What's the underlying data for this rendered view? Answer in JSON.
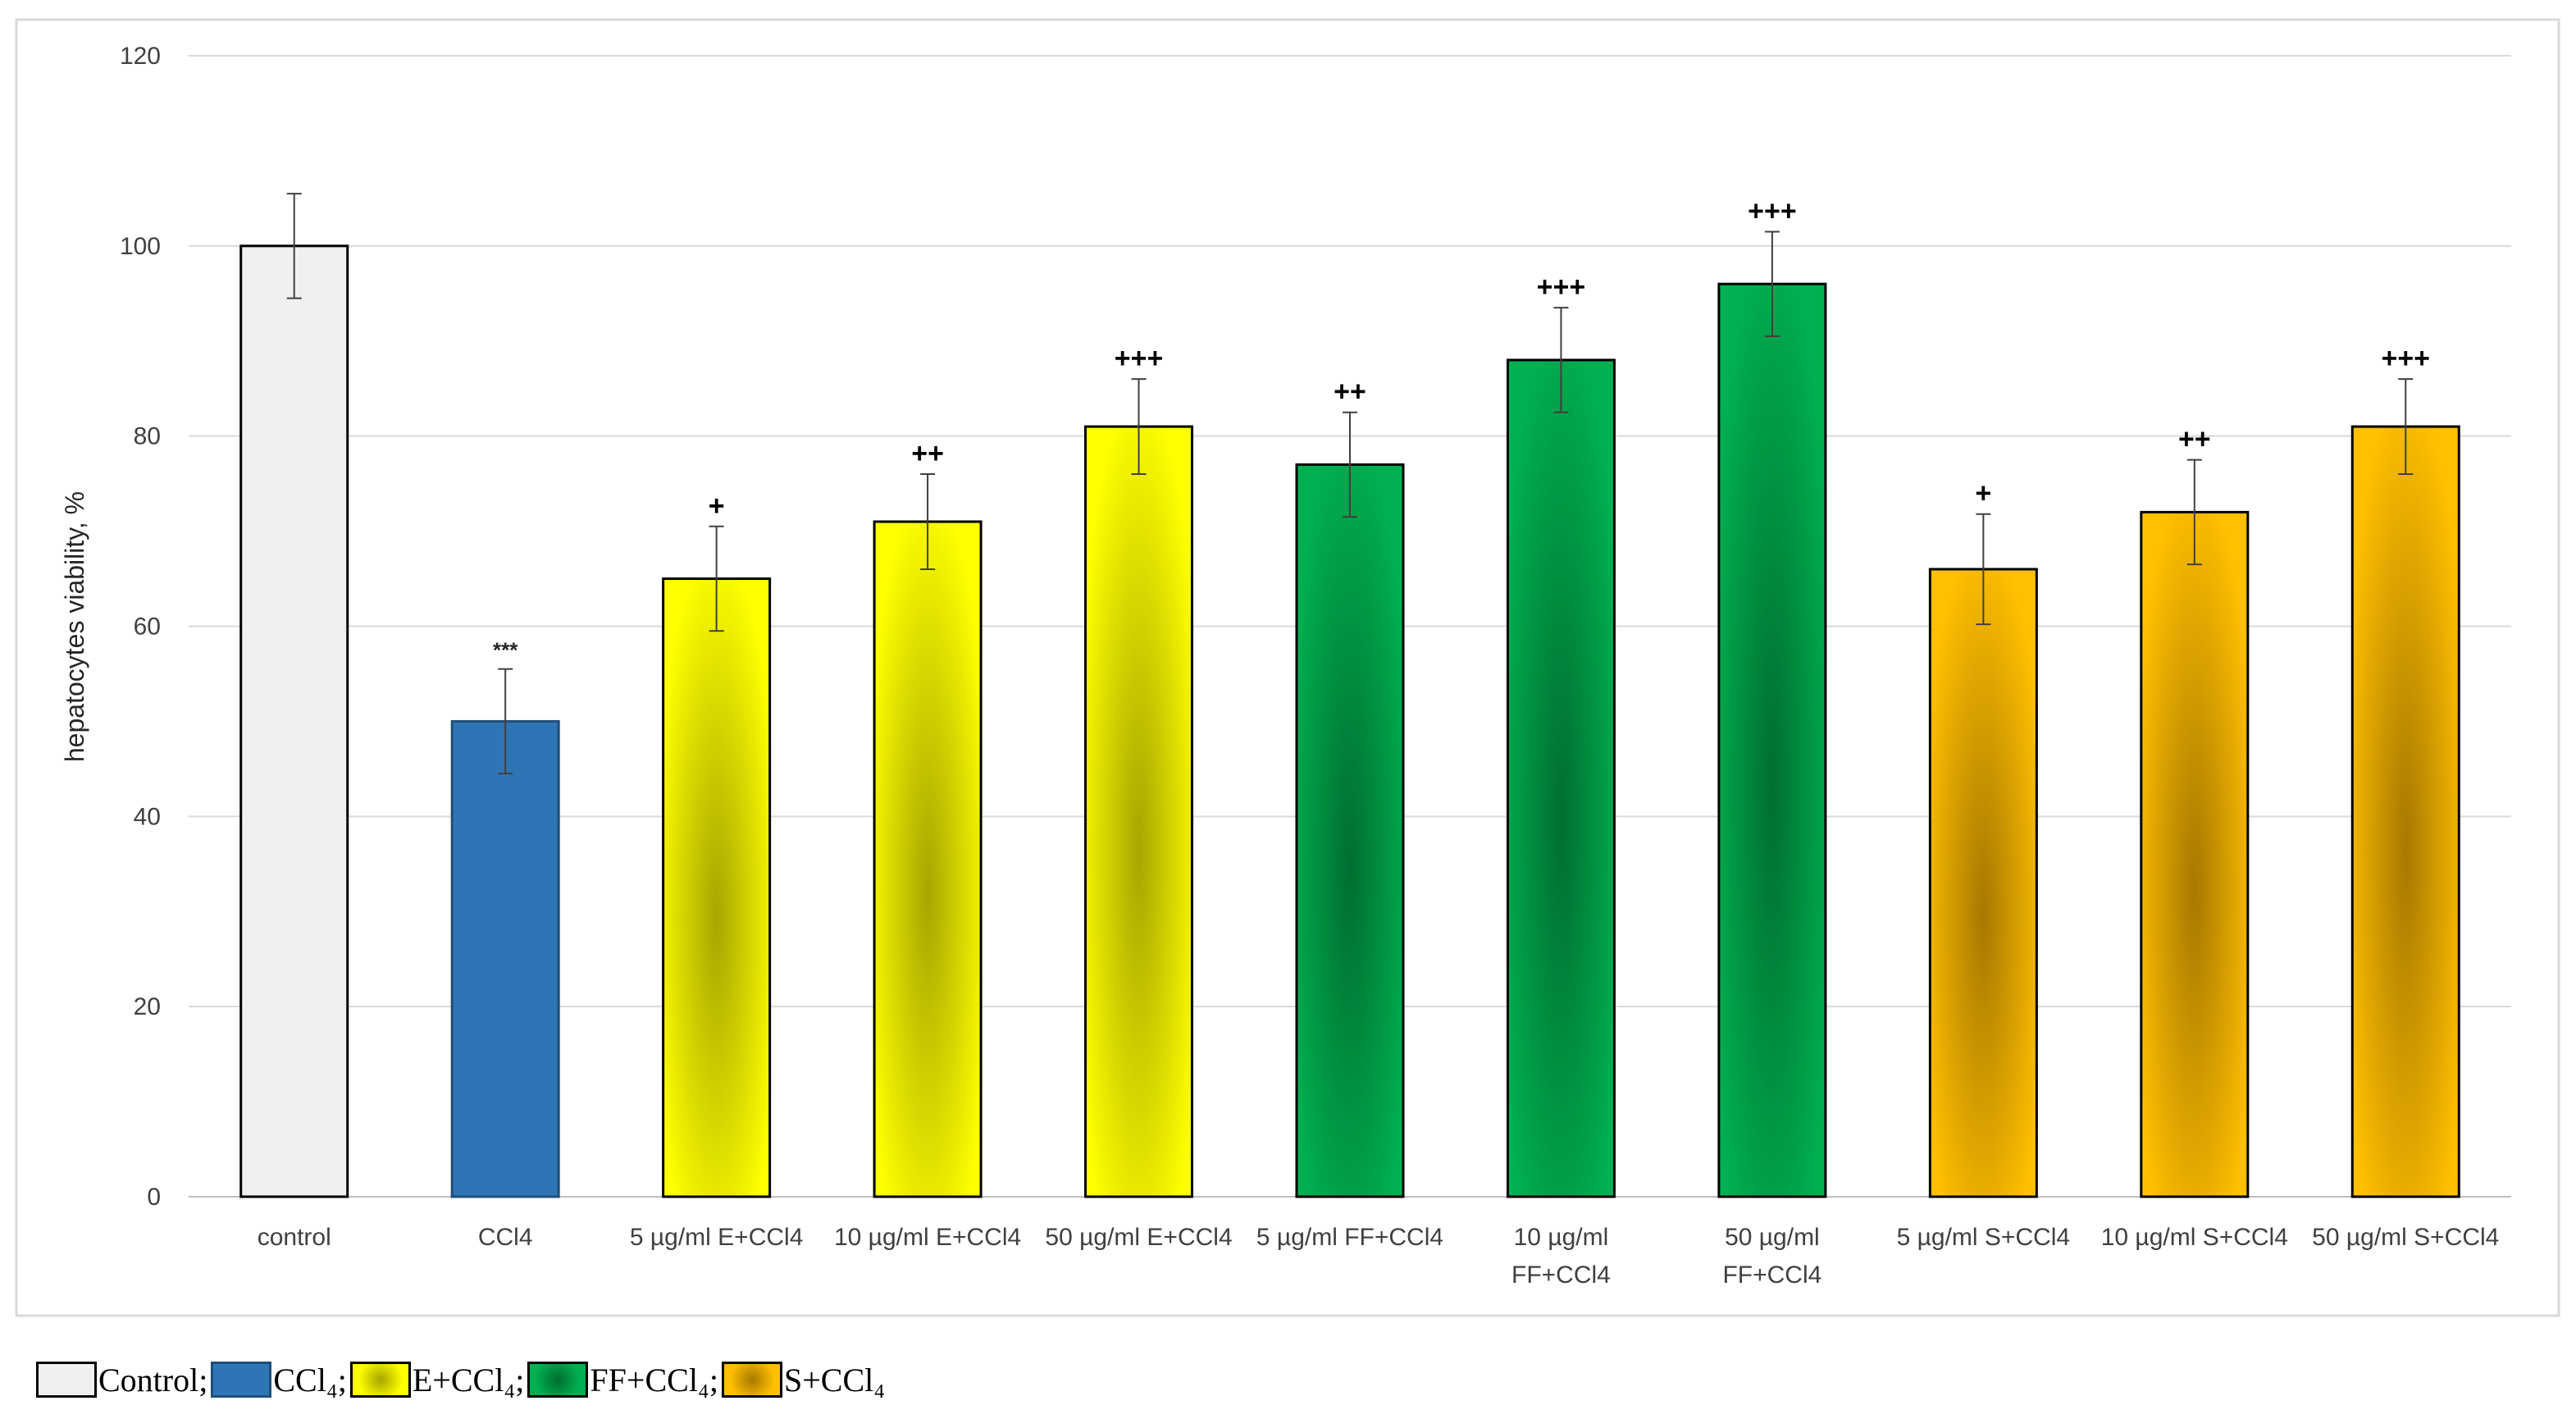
{
  "chart_data": {
    "type": "bar",
    "title": "",
    "xlabel": "",
    "ylabel": "hepatocytes viability, %",
    "ylim": [
      0,
      120
    ],
    "yticks": [
      "0",
      "20",
      "40",
      "60",
      "80",
      "100",
      "120"
    ],
    "grid": true,
    "categories": [
      "control",
      "CCl4",
      "5 µg/ml E+CCl4",
      "10 µg/ml E+CCl4",
      "50 µg/ml E+CCl4",
      "5 µg/ml FF+CCl4",
      "10 µg/ml FF+CCl4",
      "50 µg/ml FF+CCl4",
      "5 µg/ml S+CCl4",
      "10 µg/ml S+CCl4",
      "50 µg/ml S+CCl4"
    ],
    "category_lines": [
      [
        "control"
      ],
      [
        "CCl4"
      ],
      [
        "5 µg/ml E+CCl4"
      ],
      [
        "10 µg/ml E+CCl4"
      ],
      [
        "50 µg/ml E+CCl4"
      ],
      [
        "5 µg/ml FF+CCl4"
      ],
      [
        "10 µg/ml",
        "FF+CCl4"
      ],
      [
        "50 µg/ml",
        "FF+CCl4"
      ],
      [
        "5 µg/ml S+CCl4"
      ],
      [
        "10 µg/ml S+CCl4"
      ],
      [
        "50 µg/ml S+CCl4"
      ]
    ],
    "values": [
      100,
      50,
      65,
      71,
      81,
      77,
      88,
      96,
      66,
      72,
      81
    ],
    "errors": [
      5.5,
      5.5,
      5.5,
      5,
      5,
      5.5,
      5.5,
      5.5,
      5.8,
      5.5,
      5
    ],
    "groups": [
      "control",
      "ccl4",
      "e",
      "e",
      "e",
      "ff",
      "ff",
      "ff",
      "s",
      "s",
      "s"
    ],
    "annotations": [
      "",
      "***",
      "+",
      "++",
      "+++",
      "++",
      "+++",
      "+++",
      "+",
      "++",
      "+++"
    ],
    "legend": [
      {
        "label": "Control;",
        "group": "control"
      },
      {
        "label": "CCl₄;",
        "group": "ccl4"
      },
      {
        "label": "E+CCl₄;",
        "group": "e"
      },
      {
        "label": "FF+CCl₄;",
        "group": "ff"
      },
      {
        "label": "S+CCl₄",
        "group": "s"
      }
    ],
    "colors": {
      "control": {
        "edge": "#f0f0f0",
        "center": "#f0f0f0"
      },
      "ccl4": {
        "edge": "#2e75b6",
        "center": "#2e75b6"
      },
      "e": {
        "edge": "#ffff00",
        "center": "#a6a600"
      },
      "ff": {
        "edge": "#00b050",
        "center": "#006e32"
      },
      "s": {
        "edge": "#ffc000",
        "center": "#a87800"
      }
    }
  }
}
